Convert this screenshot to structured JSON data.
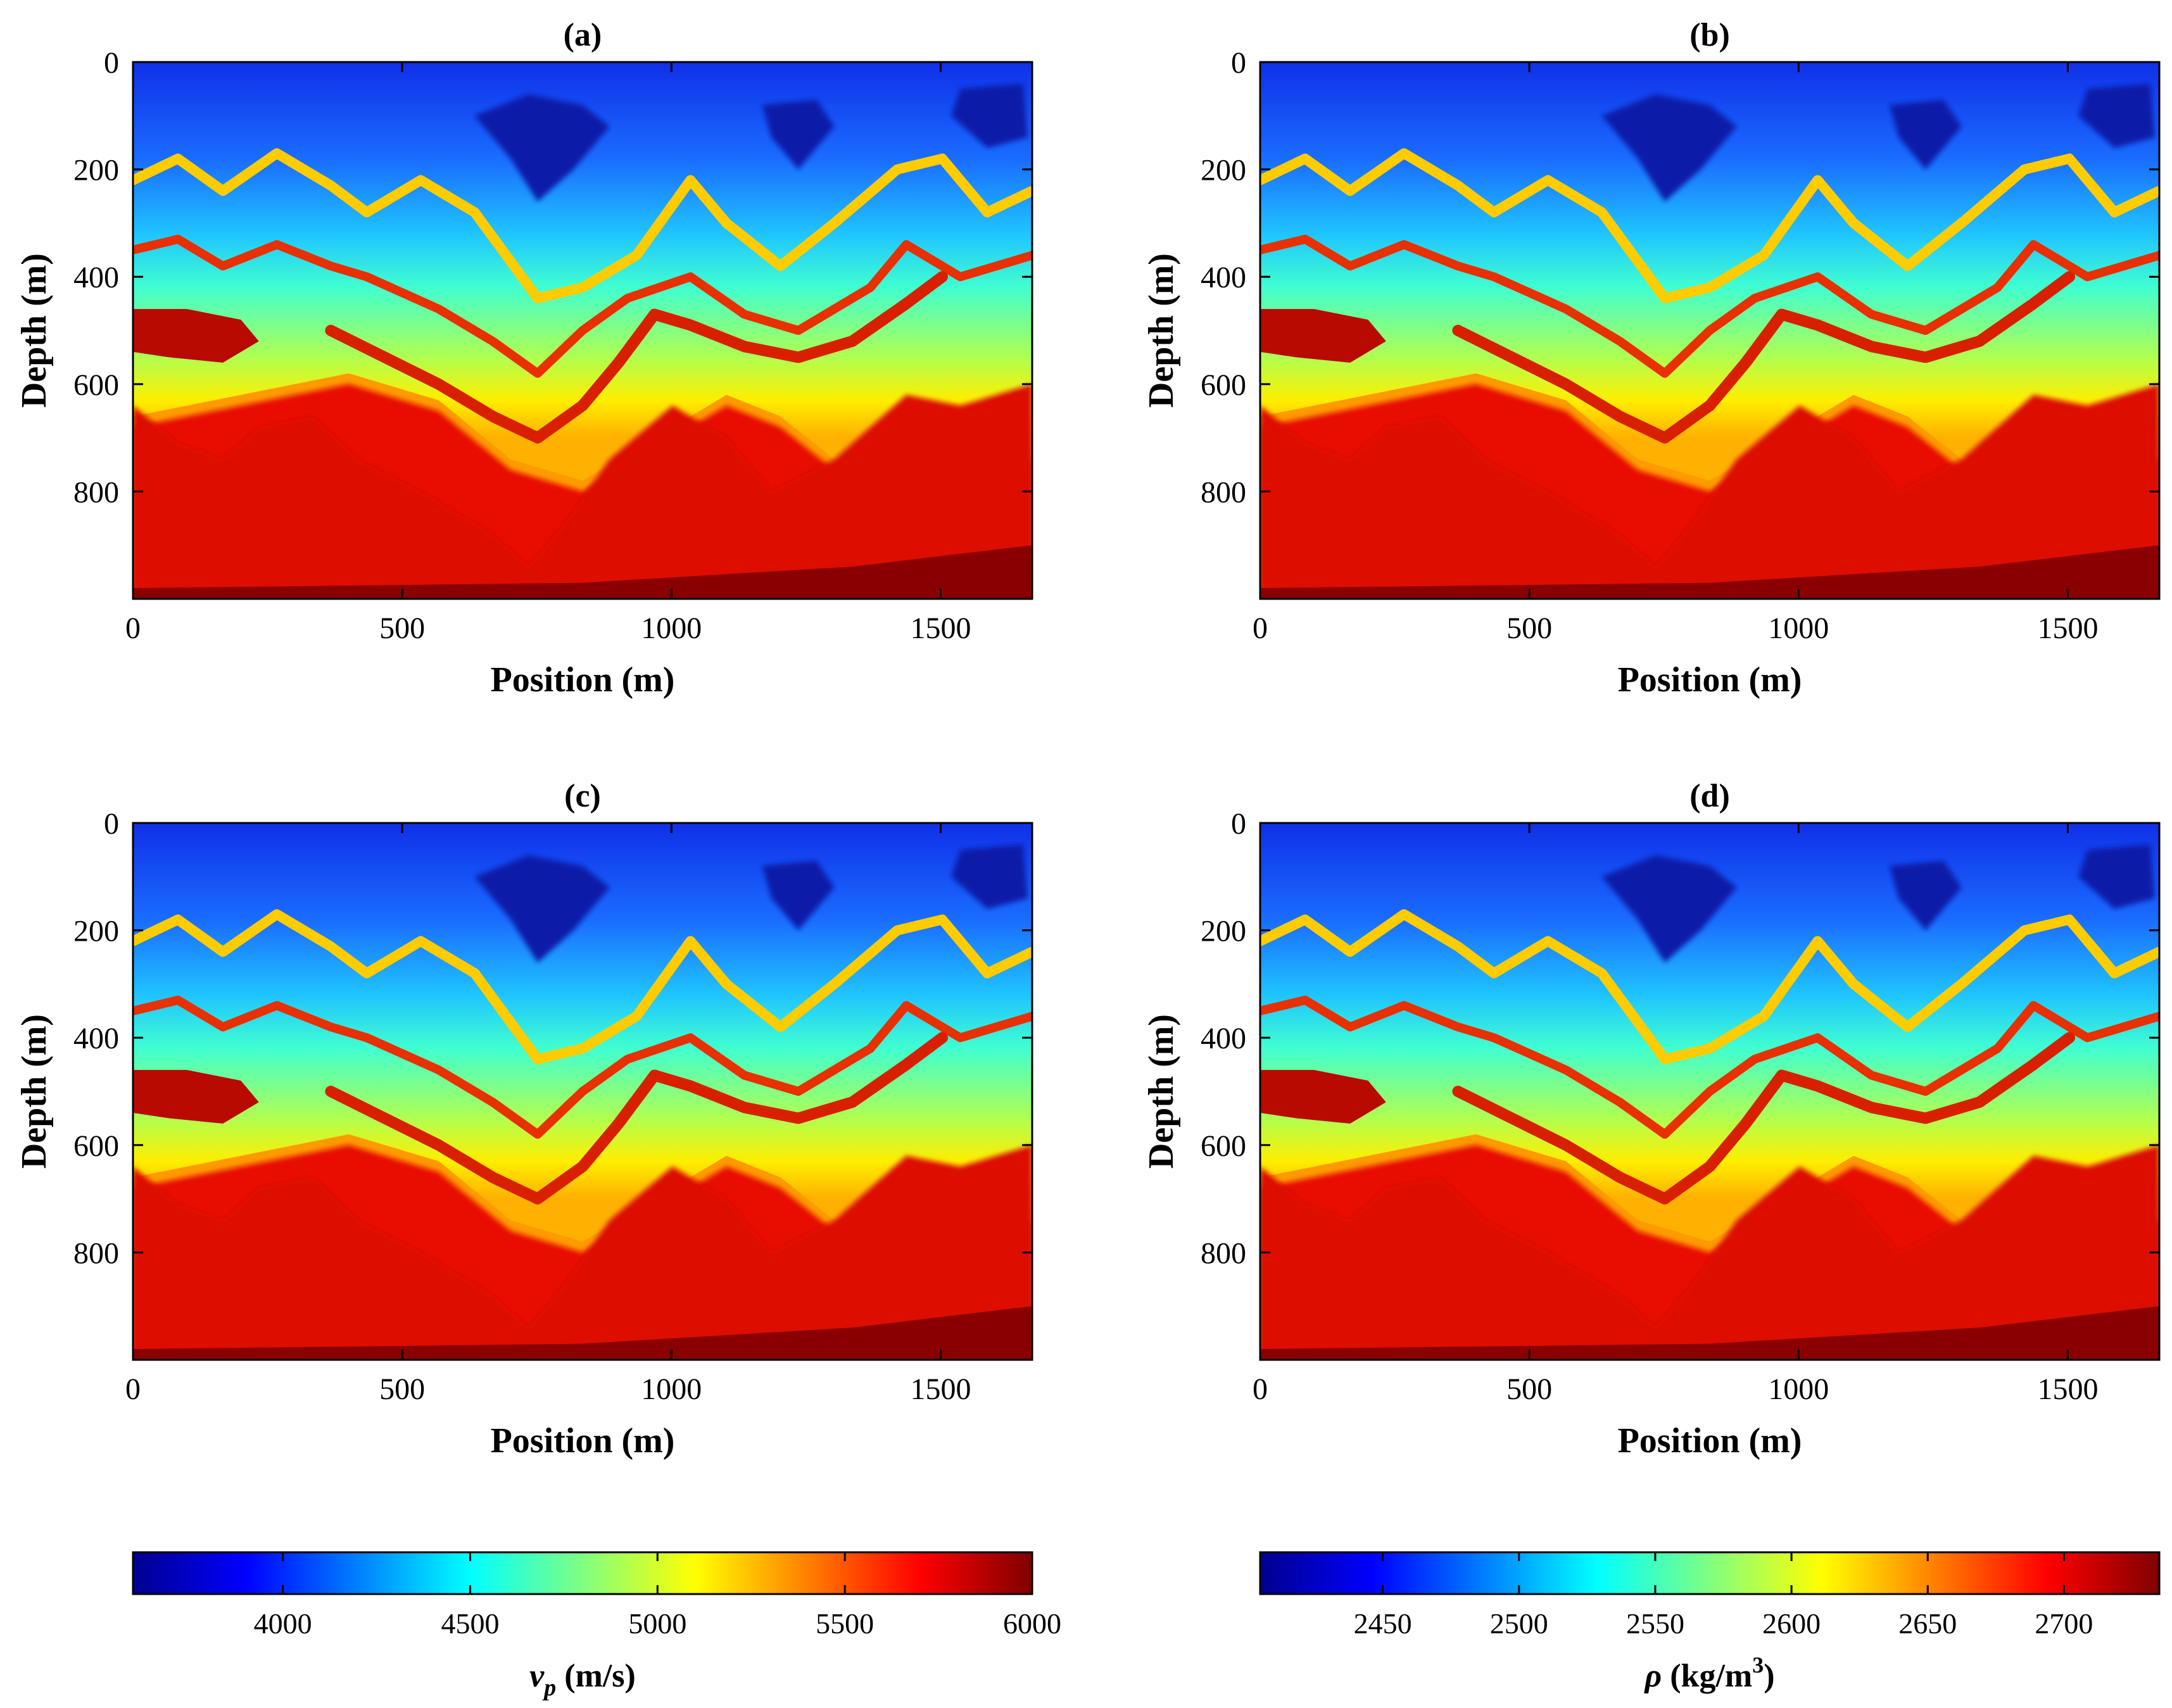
{
  "chart_data": [
    {
      "id": "a",
      "type": "heatmap",
      "title": "(a)",
      "xlabel": "Position (m)",
      "ylabel": "Depth (m)",
      "xlim": [
        0,
        1670
      ],
      "ylim": [
        0,
        1000
      ],
      "xticks": [
        0,
        500,
        1000,
        1500
      ],
      "yticks": [
        0,
        200,
        400,
        600,
        800
      ],
      "y_direction": "reversed",
      "colormap": "jet",
      "quantity": "P-wave velocity"
    },
    {
      "id": "b",
      "type": "heatmap",
      "title": "(b)",
      "xlabel": "Position (m)",
      "ylabel": "Depth (m)",
      "xlim": [
        0,
        1670
      ],
      "ylim": [
        0,
        1000
      ],
      "xticks": [
        0,
        500,
        1000,
        1500
      ],
      "yticks": [
        0,
        200,
        400,
        600,
        800
      ],
      "y_direction": "reversed",
      "colormap": "jet",
      "quantity": "Density"
    },
    {
      "id": "c",
      "type": "heatmap",
      "title": "(c)",
      "xlabel": "Position (m)",
      "ylabel": "Depth (m)",
      "xlim": [
        0,
        1670
      ],
      "ylim": [
        0,
        1000
      ],
      "xticks": [
        0,
        500,
        1000,
        1500
      ],
      "yticks": [
        0,
        200,
        400,
        600,
        800
      ],
      "y_direction": "reversed",
      "colormap": "jet",
      "quantity": "P-wave velocity"
    },
    {
      "id": "d",
      "type": "heatmap",
      "title": "(d)",
      "xlabel": "Position (m)",
      "ylabel": "Depth (m)",
      "xlim": [
        0,
        1670
      ],
      "ylim": [
        0,
        1000
      ],
      "xticks": [
        0,
        500,
        1000,
        1500
      ],
      "yticks": [
        0,
        200,
        400,
        600,
        800
      ],
      "y_direction": "reversed",
      "colormap": "jet",
      "quantity": "Density"
    }
  ],
  "colorbars": [
    {
      "id": "vp",
      "label_main": "v",
      "label_sub": "p",
      "label_rest": " (m/s)",
      "range": [
        3600,
        6000
      ],
      "ticks": [
        4000,
        4500,
        5000,
        5500,
        6000
      ],
      "colormap": "jet"
    },
    {
      "id": "rho",
      "label_main": "ρ",
      "label_rest": " (kg/m",
      "label_sup": "3",
      "label_close": ")",
      "range": [
        2405,
        2735
      ],
      "ticks": [
        2450,
        2500,
        2550,
        2600,
        2650,
        2700
      ],
      "colormap": "jet"
    }
  ],
  "colors": {
    "jet": [
      "#00008f",
      "#0000ff",
      "#00ffff",
      "#ffff00",
      "#ff0000",
      "#800000"
    ]
  }
}
